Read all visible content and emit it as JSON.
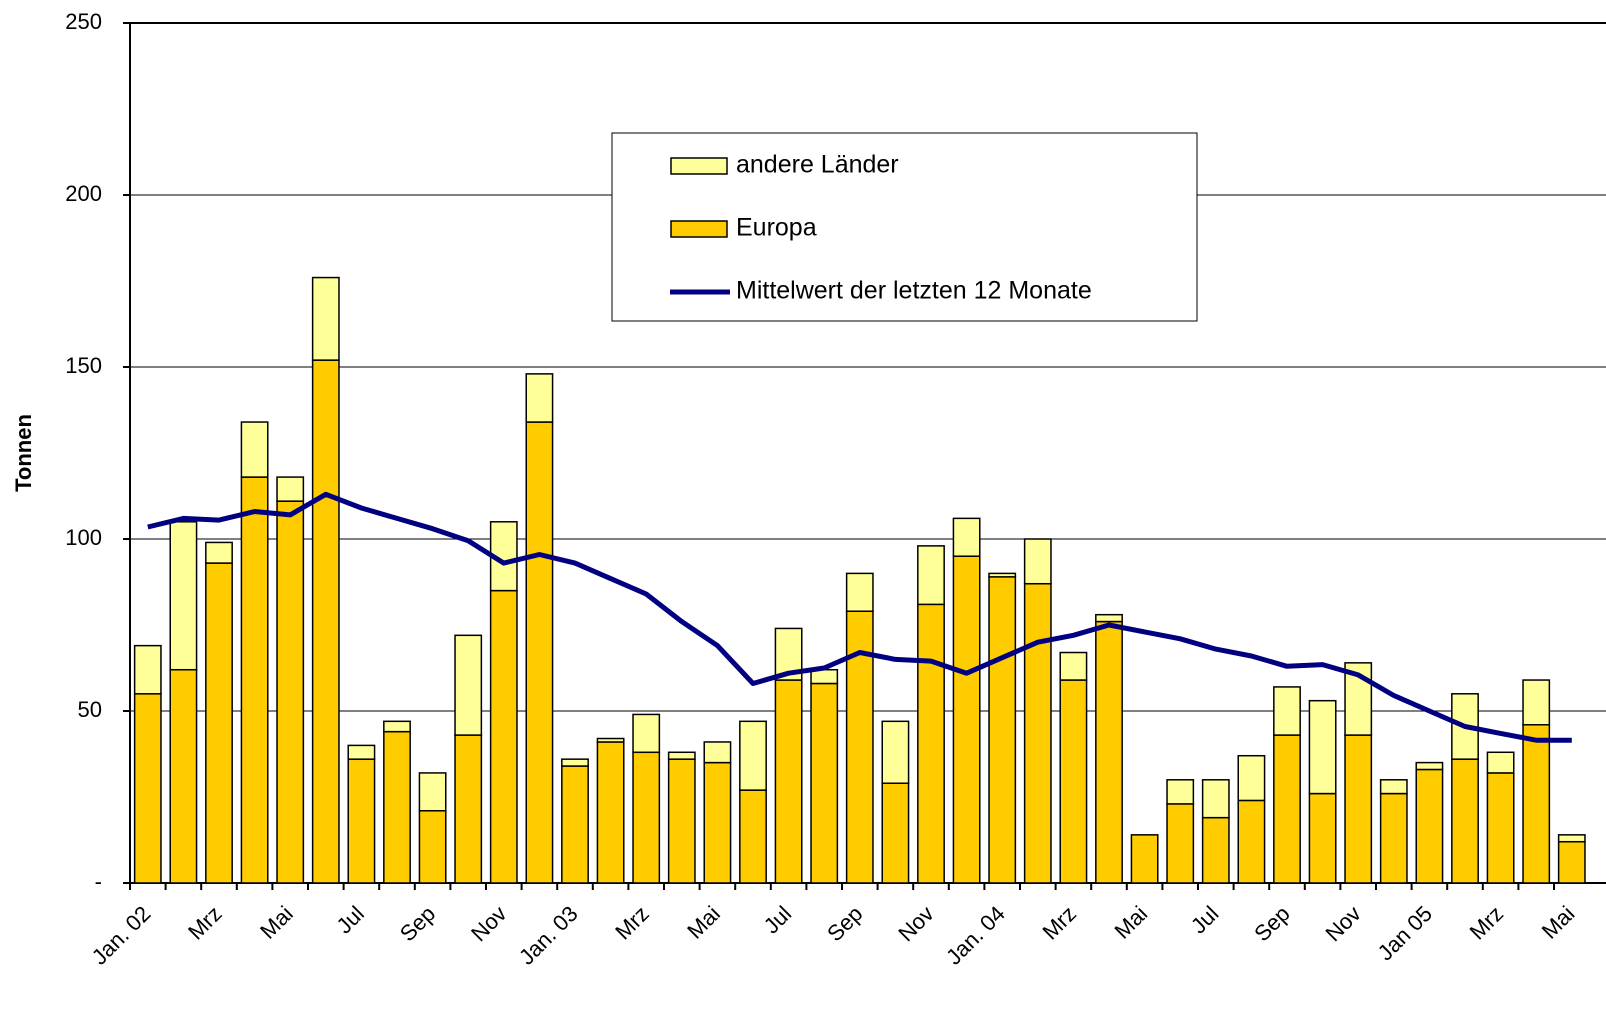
{
  "chart_data": {
    "type": "bar",
    "stacked": true,
    "y_label": "Tonnen",
    "categories": [
      "Jan. 02",
      null,
      "Mrz",
      null,
      "Mai",
      null,
      "Jul",
      null,
      "Sep",
      null,
      "Nov",
      null,
      "Jan. 03",
      null,
      "Mrz",
      null,
      "Mai",
      null,
      "Jul",
      null,
      "Sep",
      null,
      "Nov",
      null,
      "Jan. 04",
      null,
      "Mrz",
      null,
      "Mai",
      null,
      "Jul",
      null,
      "Sep",
      null,
      "Nov",
      null,
      "Jan 05",
      null,
      "Mrz",
      null,
      "Mai"
    ],
    "series": [
      {
        "name": "Europa",
        "color": "#FFCC00",
        "type": "bar",
        "values": [
          55,
          62,
          93,
          118,
          111,
          152,
          36,
          44,
          21,
          43,
          85,
          134,
          34,
          41,
          38,
          36,
          35,
          27,
          59,
          58,
          79,
          29,
          81,
          95,
          89,
          87,
          59,
          76,
          14,
          23,
          19,
          24,
          43,
          26,
          43,
          26,
          33,
          36,
          32,
          46,
          12
        ]
      },
      {
        "name": "andere Länder",
        "color": "#FFFF99",
        "type": "bar",
        "values": [
          14,
          43,
          6,
          16,
          7,
          24,
          4,
          3,
          11,
          29,
          20,
          14,
          2,
          1,
          11,
          2,
          6,
          20,
          15,
          4,
          11,
          18,
          17,
          11,
          1,
          13,
          8,
          2,
          0,
          7,
          11,
          13,
          14,
          27,
          21,
          4,
          2,
          19,
          6,
          13,
          2
        ]
      },
      {
        "name": "Mittelwert der letzten 12 Monate",
        "color": "#000080",
        "type": "line",
        "values": [
          103.5,
          106,
          105.5,
          108,
          107,
          113,
          109,
          106,
          103,
          99.5,
          93,
          95.5,
          93,
          88.5,
          84,
          76,
          69,
          58,
          61,
          62.5,
          67,
          65,
          64.5,
          61,
          65.5,
          70,
          72,
          75,
          73,
          71,
          68,
          66,
          63,
          63.5,
          60.5,
          54.5,
          50,
          45.5,
          43.5,
          41.5,
          41.5
        ]
      }
    ],
    "legend_order": [
      1,
      0,
      2
    ],
    "ylim": [
      0,
      250
    ],
    "yticks": [
      {
        "value": 0,
        "label": "-"
      },
      50,
      100,
      150,
      200,
      250
    ],
    "grid": true
  }
}
